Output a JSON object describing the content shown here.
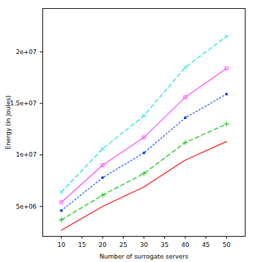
{
  "chart_data": {
    "type": "line",
    "x_label": "Number of surrogate servers",
    "y_label": "Energy (in Joules)",
    "x": [
      10,
      20,
      30,
      40,
      50
    ],
    "xlim": [
      5.5,
      54.5
    ],
    "xticks": [
      10,
      15,
      20,
      25,
      30,
      35,
      40,
      45,
      50
    ],
    "ylim": [
      2100000,
      24200000
    ],
    "yticks": [
      {
        "value": 5000000,
        "label": "5e+06"
      },
      {
        "value": 10000000,
        "label": "1e+07"
      },
      {
        "value": 15000000,
        "label": "1.5e+07"
      },
      {
        "value": 20000000,
        "label": "2e+07"
      }
    ],
    "grid": false,
    "series": [
      {
        "color": "#ff0000",
        "line_style": "solid",
        "values": [
          2700000,
          5000000,
          6900000,
          9500000,
          11300000
        ]
      },
      {
        "color": "#00c000",
        "line_style": "dashed",
        "marker": "plus",
        "values": [
          3700000,
          6100000,
          8200000,
          11200000,
          13000000
        ]
      },
      {
        "color": "#0040ff",
        "line_style": "dotted",
        "marker": "dot",
        "values": [
          4600000,
          7800000,
          10200000,
          13600000,
          15900000
        ]
      },
      {
        "color": "#ff40ff",
        "line_style": "solid",
        "marker": "square",
        "values": [
          5400000,
          9000000,
          11700000,
          15600000,
          18400000
        ]
      },
      {
        "color": "#00e0e0",
        "line_style": "dashed",
        "marker": "cross",
        "values": [
          6400000,
          10600000,
          13800000,
          18500000,
          21500000
        ]
      }
    ]
  }
}
